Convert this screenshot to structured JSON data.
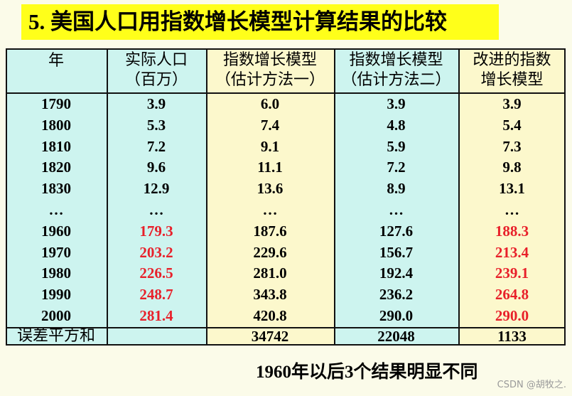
{
  "title": "5. 美国人口用指数增长模型计算结果的比较",
  "table": {
    "header": [
      [
        "年"
      ],
      [
        "实际人口",
        "（百万）"
      ],
      [
        "指数增长模型",
        "（估计方法一）"
      ],
      [
        "指数增长模型",
        "（估计方法二）"
      ],
      [
        "改进的指数",
        "增长模型"
      ]
    ],
    "rows": [
      [
        "1790",
        "3.9",
        "6.0",
        "3.9",
        "3.9"
      ],
      [
        "1800",
        "5.3",
        "7.4",
        "4.8",
        "5.4"
      ],
      [
        "1810",
        "7.2",
        "9.1",
        "5.9",
        "7.3"
      ],
      [
        "1820",
        "9.6",
        "11.1",
        "7.2",
        "9.8"
      ],
      [
        "1830",
        "12.9",
        "13.6",
        "8.9",
        "13.1"
      ],
      [
        "…",
        "…",
        "…",
        "…",
        "…"
      ],
      [
        "1960",
        "179.3",
        "187.6",
        "127.6",
        "188.3"
      ],
      [
        "1970",
        "203.2",
        "229.6",
        "156.7",
        "213.4"
      ],
      [
        "1980",
        "226.5",
        "281.0",
        "192.4",
        "239.1"
      ],
      [
        "1990",
        "248.7",
        "343.8",
        "236.2",
        "264.8"
      ],
      [
        "2000",
        "281.4",
        "420.8",
        "290.0",
        "290.0"
      ]
    ],
    "footer": [
      "误差平方和",
      "",
      "34742",
      "22048",
      "1133"
    ]
  },
  "note": "1960年以后3个结果明显不同",
  "watermark": "CSDN @胡牧之."
}
